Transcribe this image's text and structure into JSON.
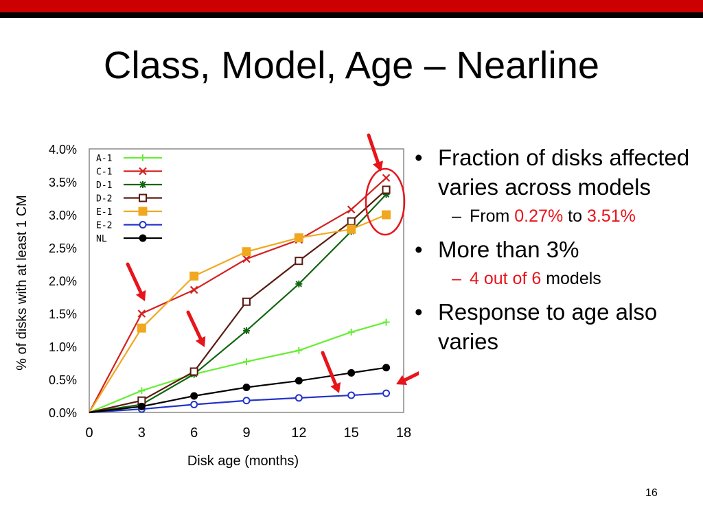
{
  "title": "Class, Model, Age – Nearline",
  "page_number": "16",
  "bullets": {
    "b1": "Fraction of disks affected varies across models",
    "b1_sub_prefix": "From",
    "b1_sub_val1": "0.27%",
    "b1_sub_mid": "to",
    "b1_sub_val2": "3.51%",
    "b2": "More than 3%",
    "b2_sub_red": "4 out of 6",
    "b2_sub_tail": "models",
    "b3": "Response to age also varies"
  },
  "colors": {
    "accent_red": "#cc0000",
    "highlight_red": "#e8141b"
  },
  "chart_data": {
    "type": "line",
    "xlabel": "Disk age (months)",
    "ylabel": "% of disks with at least 1 CM",
    "x_ticks": [
      "0",
      "3",
      "6",
      "9",
      "12",
      "15",
      "18"
    ],
    "y_ticks": [
      "0.0%",
      "0.5%",
      "1.0%",
      "1.5%",
      "2.0%",
      "2.5%",
      "3.0%",
      "3.5%",
      "4.0%"
    ],
    "xlim": [
      0,
      18
    ],
    "ylim": [
      0,
      4.0
    ],
    "x": [
      0,
      3,
      6,
      9,
      12,
      15,
      17
    ],
    "legend_position": "top-left",
    "series": [
      {
        "name": "A-1",
        "color": "#66ee33",
        "marker": "plus",
        "values": [
          0,
          0.33,
          0.58,
          0.77,
          0.94,
          1.22,
          1.37
        ]
      },
      {
        "name": "C-1",
        "color": "#d42020",
        "marker": "x",
        "values": [
          0,
          1.5,
          1.86,
          2.33,
          2.62,
          3.08,
          3.56
        ]
      },
      {
        "name": "D-1",
        "color": "#116611",
        "marker": "star",
        "values": [
          0,
          0.12,
          0.58,
          1.24,
          1.95,
          2.75,
          3.31
        ]
      },
      {
        "name": "D-2",
        "color": "#5a1a10",
        "marker": "square",
        "values": [
          0,
          0.18,
          0.62,
          1.68,
          2.3,
          2.9,
          3.38
        ]
      },
      {
        "name": "E-1",
        "color": "#f0a820",
        "marker": "fsquare",
        "values": [
          0,
          1.28,
          2.07,
          2.44,
          2.65,
          2.78,
          3.0
        ]
      },
      {
        "name": "E-2",
        "color": "#2233cc",
        "marker": "circle",
        "values": [
          0,
          0.05,
          0.12,
          0.18,
          0.22,
          0.26,
          0.29
        ]
      },
      {
        "name": "NL",
        "color": "#000000",
        "marker": "fcircle",
        "values": [
          0,
          0.09,
          0.25,
          0.38,
          0.48,
          0.6,
          0.68
        ]
      }
    ]
  }
}
